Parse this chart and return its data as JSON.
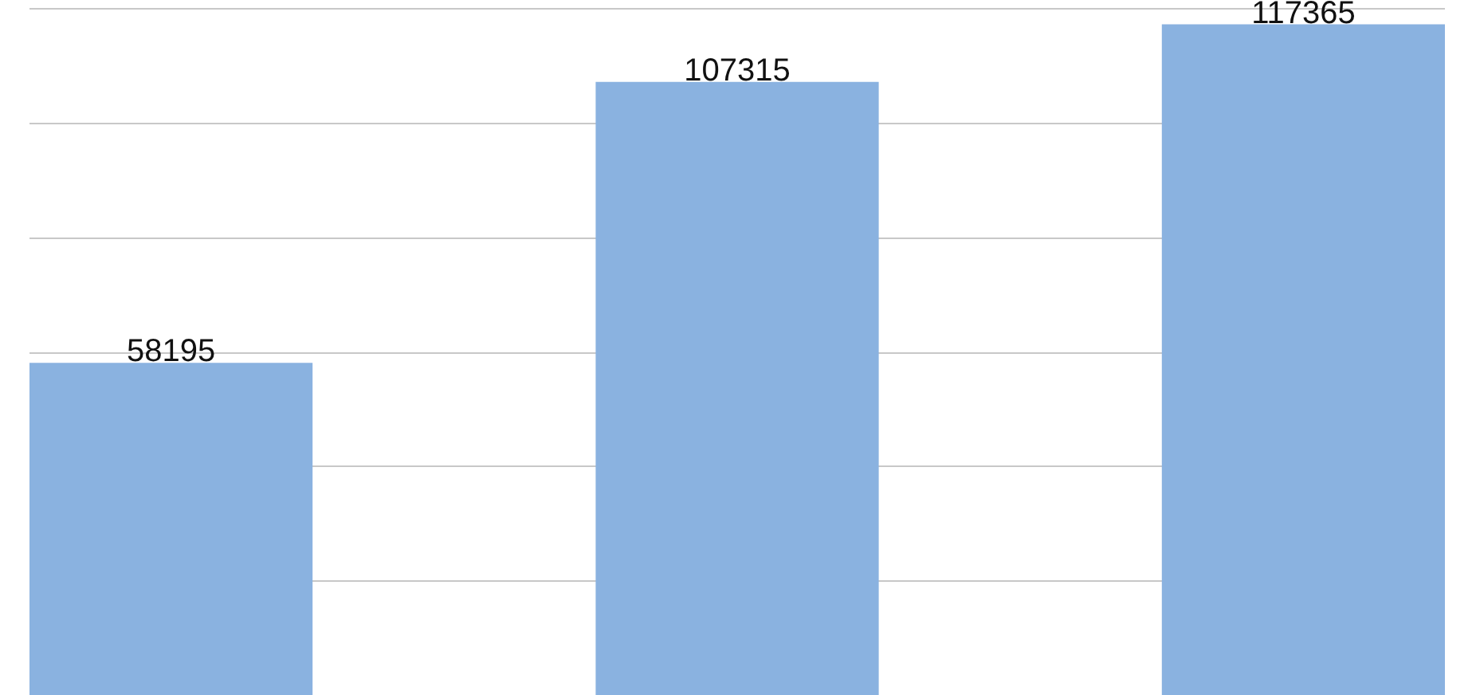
{
  "chart_data": {
    "type": "bar",
    "categories": [
      null,
      null,
      null
    ],
    "values": [
      58195,
      107315,
      117365
    ],
    "color": "#8ab2e0",
    "data_labels": true,
    "grid": "y",
    "tick_labels": false
  }
}
